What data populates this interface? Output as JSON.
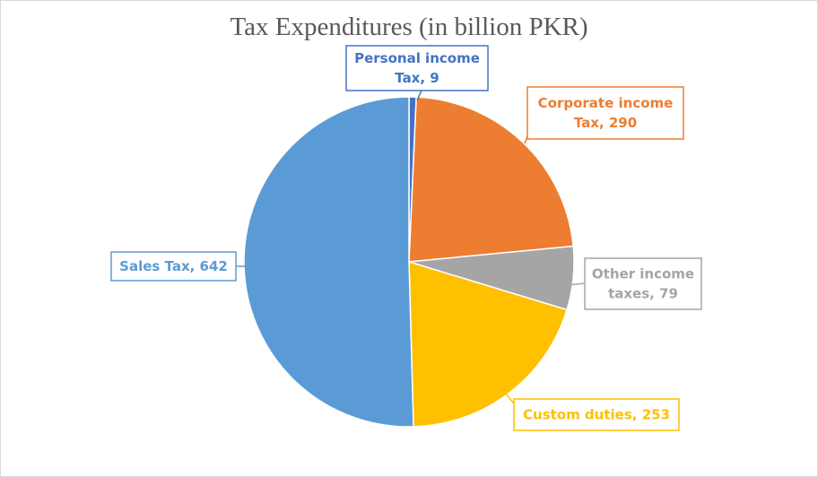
{
  "chart_data": {
    "type": "pie",
    "title": "Tax Expenditures (in billion PKR)",
    "slices": [
      {
        "label": "Personal income Tax",
        "value": 9,
        "color": "#4472c4",
        "callout_lines": [
          "Personal income",
          "Tax, 9"
        ]
      },
      {
        "label": "Corporate income Tax",
        "value": 290,
        "color": "#ed7d31",
        "callout_lines": [
          "Corporate income",
          "Tax, 290"
        ]
      },
      {
        "label": "Other income taxes",
        "value": 79,
        "color": "#a5a5a5",
        "callout_lines": [
          "Other income",
          "taxes, 79"
        ]
      },
      {
        "label": "Custom duties",
        "value": 253,
        "color": "#ffc000",
        "callout_lines": [
          "Custom duties, 253"
        ]
      },
      {
        "label": "Sales Tax",
        "value": 642,
        "color": "#5b9bd5",
        "callout_lines": [
          "Sales Tax, 642"
        ]
      }
    ]
  }
}
